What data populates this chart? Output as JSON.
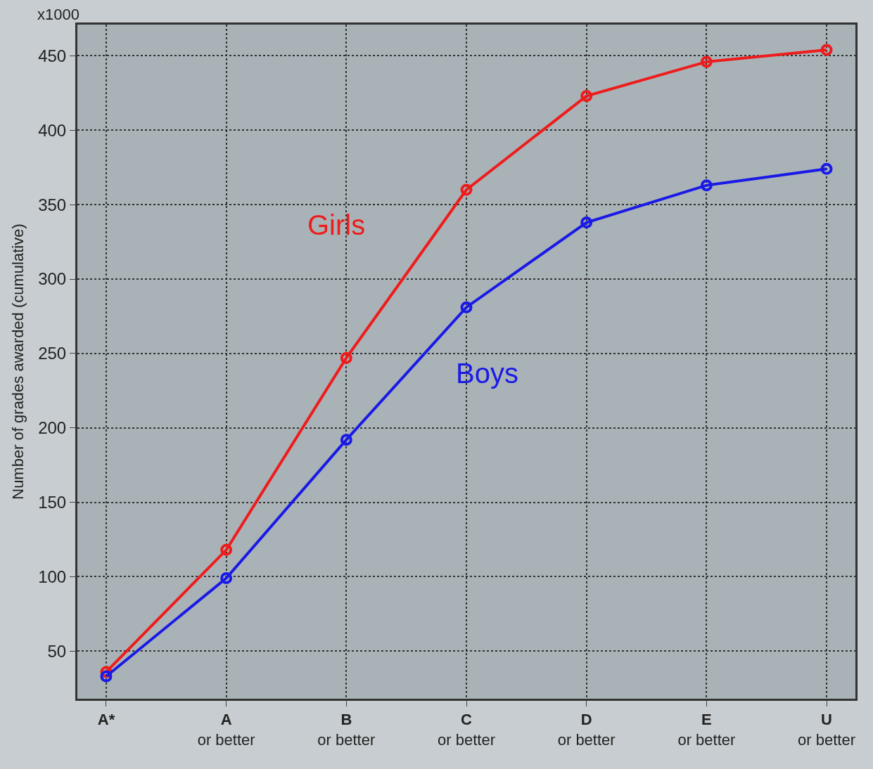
{
  "chart_data": {
    "type": "line",
    "ylabel": "Number of grades awarded (cumulative)",
    "annotations": [
      "x1000"
    ],
    "categories": [
      "A*",
      "A\nor better",
      "B\nor better",
      "C\nor better",
      "D\nor better",
      "E\nor better",
      "U\nor better"
    ],
    "series": [
      {
        "name": "Girls",
        "color": "#ee1c1c",
        "values": [
          36,
          118,
          247,
          360,
          423,
          446,
          454
        ]
      },
      {
        "name": "Boys",
        "color": "#1a1ae6",
        "values": [
          33,
          99,
          192,
          281,
          338,
          363,
          374
        ]
      }
    ],
    "ylim": [
      18,
      471
    ],
    "yticks": [
      50,
      100,
      150,
      200,
      250,
      300,
      350,
      400,
      450
    ],
    "grid": true,
    "marker": "circle",
    "line_style": "solid",
    "legend": false
  }
}
